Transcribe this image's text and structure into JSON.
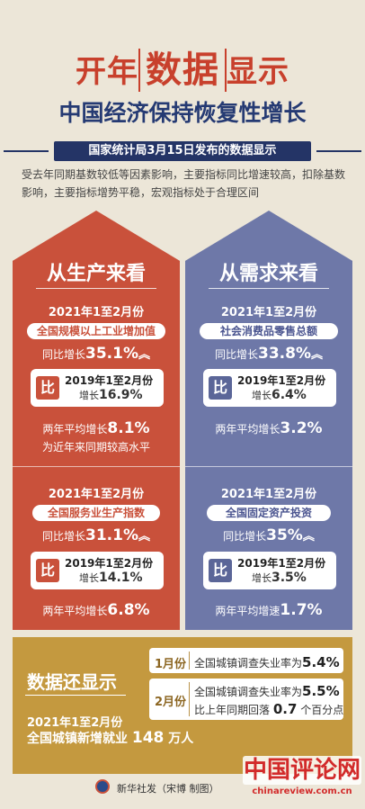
{
  "header": {
    "title_prefix": "开年",
    "title_highlight": "数据",
    "title_suffix": "显示",
    "subtitle": "中国经济保持恢复性增长",
    "source": "国家统计局3月15日发布的数据显示",
    "intro": "受去年同期基数较低等因素影响，主要指标同比增速较高，扣除基数影响，主要指标增势平稳，宏观指标处于合理区间"
  },
  "production": {
    "heading": "从生产来看",
    "industry": {
      "period": "2021年1至2月份",
      "indicator": "全国规模以上工业增加值",
      "growth_label": "同比增长",
      "growth_value": "35.1%",
      "compare_tag": "比",
      "compare_period": "2019年1至2月份",
      "compare_label": "增长",
      "compare_value": "16.9%",
      "avg_label": "两年平均增长",
      "avg_value": "8.1%",
      "note": "为近年来同期较高水平"
    },
    "services": {
      "period": "2021年1至2月份",
      "indicator": "全国服务业生产指数",
      "growth_label": "同比增长",
      "growth_value": "31.1%",
      "compare_tag": "比",
      "compare_period": "2019年1至2月份",
      "compare_label": "增长",
      "compare_value": "14.1%",
      "avg_label": "两年平均增长",
      "avg_value": "6.8%"
    }
  },
  "demand": {
    "heading": "从需求来看",
    "retail": {
      "period": "2021年1至2月份",
      "indicator": "社会消费品零售总额",
      "growth_label": "同比增长",
      "growth_value": "33.8%",
      "compare_tag": "比",
      "compare_period": "2019年1至2月份",
      "compare_label": "增长",
      "compare_value": "6.4%",
      "avg_label": "两年平均增长",
      "avg_value": "3.2%"
    },
    "investment": {
      "period": "2021年1至2月份",
      "indicator": "全国固定资产投资",
      "growth_label": "同比增长",
      "growth_value": "35%",
      "compare_tag": "比",
      "compare_period": "2019年1至2月份",
      "compare_label": "增长",
      "compare_value": "3.5%",
      "avg_label": "两年平均增速",
      "avg_value": "1.7%"
    }
  },
  "more": {
    "title": "数据还显示",
    "period": "2021年1至2月份",
    "jobs_prefix": "全国城镇新增就业",
    "jobs_value": "148",
    "jobs_unit": "万人",
    "jan": {
      "tag": "1月份",
      "text": "全国城镇调查失业率为",
      "value": "5.4%"
    },
    "feb": {
      "tag": "2月份",
      "text": "全国城镇调查失业率为",
      "value": "5.5%",
      "text2_prefix": "比上年同期回落",
      "text2_value": "0.7",
      "text2_suffix": "个百分点"
    }
  },
  "footer": {
    "credit": "新华社发（宋博 制图）",
    "watermark": "中国评论网",
    "watermark_url": "chinareview.com.cn"
  },
  "colors": {
    "red": "#c9513b",
    "blue": "#6e78a8",
    "gold": "#c4993f",
    "navy": "#243466"
  }
}
